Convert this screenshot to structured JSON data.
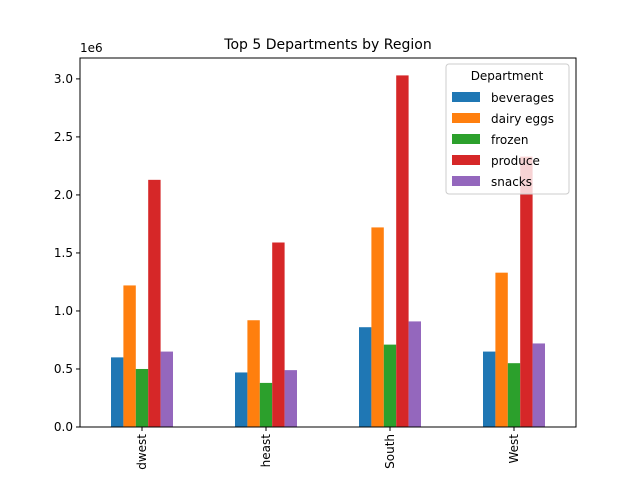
{
  "chart_data": {
    "type": "bar",
    "title": "Top 5 Departments by Region",
    "xlabel": "",
    "ylabel": "",
    "y_scale_label": "1e6",
    "ylim": [
      0,
      3180000
    ],
    "yticks": [
      0,
      500000,
      1000000,
      1500000,
      2000000,
      2500000,
      3000000
    ],
    "ytick_labels": [
      "0.0",
      "0.5",
      "1.0",
      "1.5",
      "2.0",
      "2.5",
      "3.0"
    ],
    "categories": [
      "dwest",
      "heast",
      "South",
      "West"
    ],
    "series": [
      {
        "name": "beverages",
        "color": "#1f77b4",
        "values": [
          600000,
          470000,
          860000,
          650000
        ]
      },
      {
        "name": "dairy eggs",
        "color": "#ff7f0e",
        "values": [
          1220000,
          920000,
          1720000,
          1330000
        ]
      },
      {
        "name": "frozen",
        "color": "#2ca02c",
        "values": [
          500000,
          380000,
          710000,
          550000
        ]
      },
      {
        "name": "produce",
        "color": "#d62728",
        "values": [
          2130000,
          1590000,
          3030000,
          2330000
        ]
      },
      {
        "name": "snacks",
        "color": "#9467bd",
        "values": [
          650000,
          490000,
          910000,
          720000
        ]
      }
    ],
    "legend": {
      "title": "Department",
      "placement": "top-right"
    },
    "grid": false
  }
}
